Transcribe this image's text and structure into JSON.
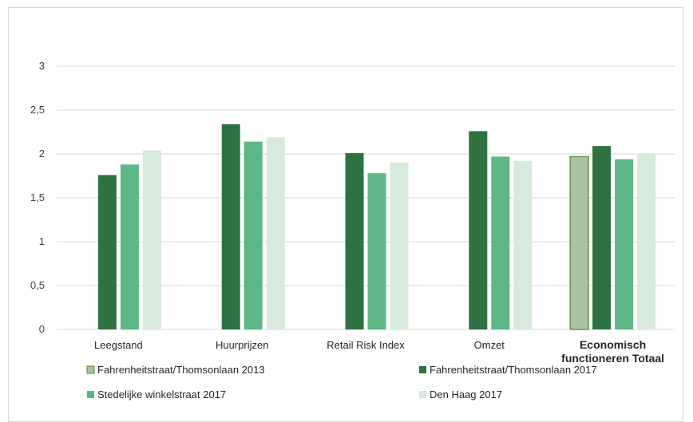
{
  "chart_data": {
    "type": "bar",
    "title": "",
    "xlabel": "",
    "ylabel": "",
    "ylim": [
      0,
      3
    ],
    "yticks": [
      "0",
      "0,5",
      "1",
      "1,5",
      "2",
      "2,5",
      "3"
    ],
    "grid": true,
    "legend_position": "bottom",
    "categories": [
      "Leegstand",
      "Huurprijzen",
      "Retail Risk Index",
      "Omzet",
      "Economisch functioneren Totaal"
    ],
    "category_lines": [
      [
        "Leegstand"
      ],
      [
        "Huurprijzen"
      ],
      [
        "Retail Risk Index"
      ],
      [
        "Omzet"
      ],
      [
        "Economisch",
        "functioneren Totaal"
      ]
    ],
    "bold_categories": [
      false,
      false,
      false,
      false,
      true
    ],
    "series": [
      {
        "name": "Fahrenheitstraat/Thomsonlaan 2013",
        "color": "#a9c4a0",
        "stroke": "#548235",
        "values": [
          null,
          null,
          null,
          null,
          1.97
        ]
      },
      {
        "name": "Fahrenheitstraat/Thomsonlaan 2017",
        "color": "#2d7240",
        "stroke": "",
        "values": [
          1.76,
          2.34,
          2.01,
          2.26,
          2.09
        ]
      },
      {
        "name": "Stedelijke winkelstraat 2017",
        "color": "#5db784",
        "stroke": "",
        "values": [
          1.88,
          2.14,
          1.78,
          1.97,
          1.94
        ]
      },
      {
        "name": "Den Haag 2017",
        "color": "#d5eadb",
        "stroke": "",
        "values": [
          2.04,
          2.19,
          1.9,
          1.92,
          2.01
        ]
      }
    ]
  }
}
